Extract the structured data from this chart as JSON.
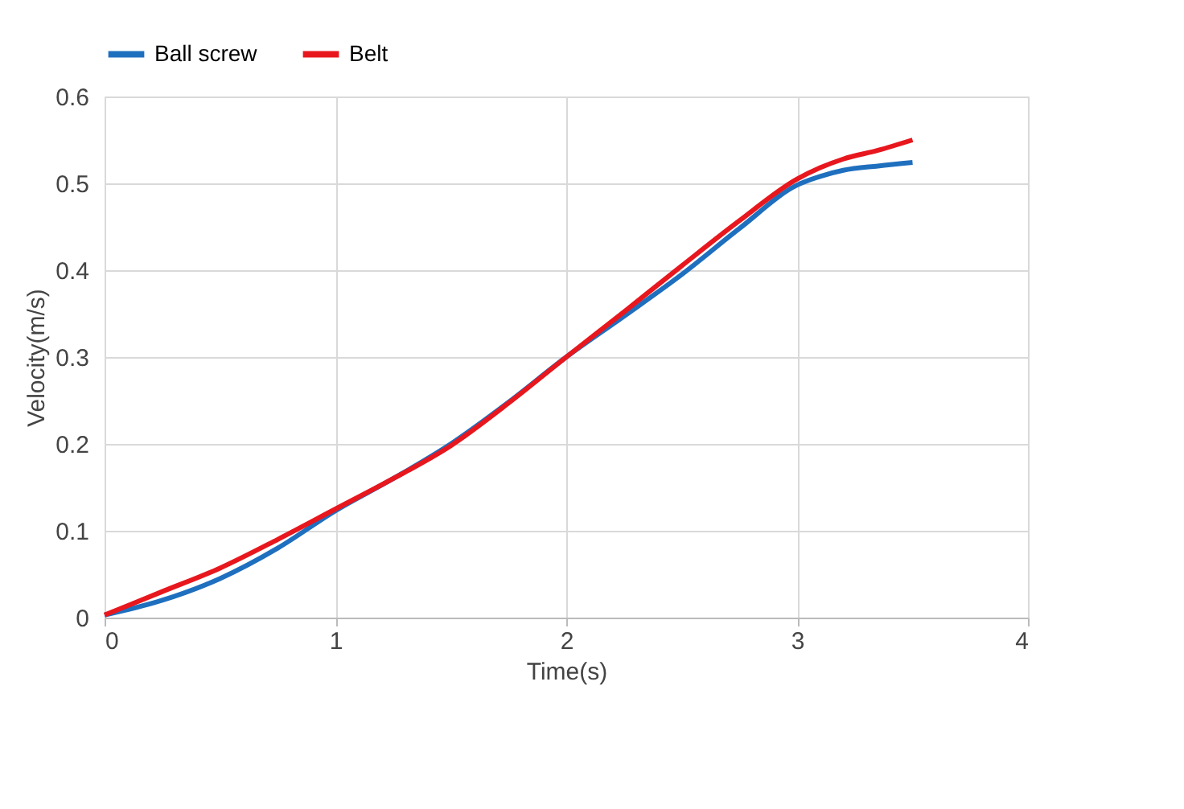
{
  "chart_data": {
    "type": "line",
    "xlabel": "Time(s)",
    "ylabel": "Velocity(m/s)",
    "xlim": [
      0,
      4
    ],
    "xticks": [
      0,
      1,
      2,
      3,
      4
    ],
    "ylim": [
      0,
      0.6
    ],
    "yticks": [
      0,
      0.1,
      0.2,
      0.3,
      0.4,
      0.5,
      0.6
    ],
    "grid": true,
    "legend": "top",
    "marker": "none",
    "line_style": "solid",
    "series": [
      {
        "name": "Ball screw",
        "color": "#1f6fbf",
        "x": [
          0,
          0.25,
          0.5,
          0.75,
          1,
          1.25,
          1.5,
          1.75,
          2,
          2.25,
          2.5,
          2.75,
          3,
          3.1,
          3.2,
          3.35,
          3.5
        ],
        "values": [
          0.003,
          0.02,
          0.045,
          0.08,
          0.123,
          0.16,
          0.2,
          0.248,
          0.3,
          0.347,
          0.395,
          0.448,
          0.498,
          0.508,
          0.515,
          0.52,
          0.524
        ]
      },
      {
        "name": "Belt",
        "color": "#e8171e",
        "x": [
          0,
          0.25,
          0.5,
          0.75,
          1,
          1.25,
          1.5,
          1.75,
          2,
          2.25,
          2.5,
          2.75,
          3,
          3.1,
          3.2,
          3.35,
          3.5
        ],
        "values": [
          0.003,
          0.03,
          0.057,
          0.09,
          0.125,
          0.16,
          0.198,
          0.247,
          0.3,
          0.352,
          0.405,
          0.457,
          0.505,
          0.518,
          0.528,
          0.538,
          0.55
        ]
      }
    ]
  }
}
